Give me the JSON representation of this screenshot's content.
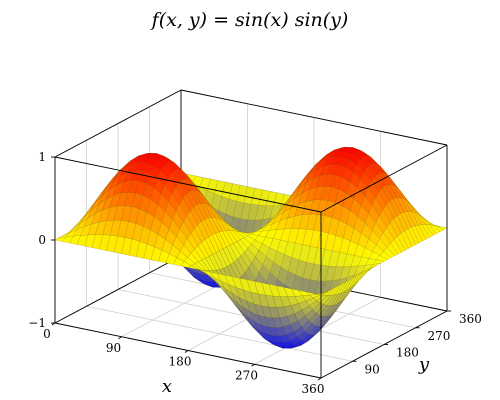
{
  "chart_data": {
    "type": "surface",
    "title": "f(x, y) = sin(x) sin(y)",
    "function": "sin(x)*sin(y)",
    "xlabel": "x",
    "ylabel": "y",
    "zlabel": "",
    "xlim": [
      0,
      360
    ],
    "ylim": [
      0,
      360
    ],
    "zlim": [
      -1,
      1
    ],
    "xticks": [
      0,
      90,
      180,
      270,
      360
    ],
    "yticks": [
      90,
      180,
      270,
      360
    ],
    "zticks": [
      -1,
      0,
      1
    ],
    "samples": 36,
    "grid": true,
    "colormap": [
      "#0000ff",
      "#ffff00",
      "#ff0000"
    ],
    "colors": {
      "axis": "#000000",
      "grid": "#cfcfcf",
      "mesh": "#5a4a00"
    }
  }
}
